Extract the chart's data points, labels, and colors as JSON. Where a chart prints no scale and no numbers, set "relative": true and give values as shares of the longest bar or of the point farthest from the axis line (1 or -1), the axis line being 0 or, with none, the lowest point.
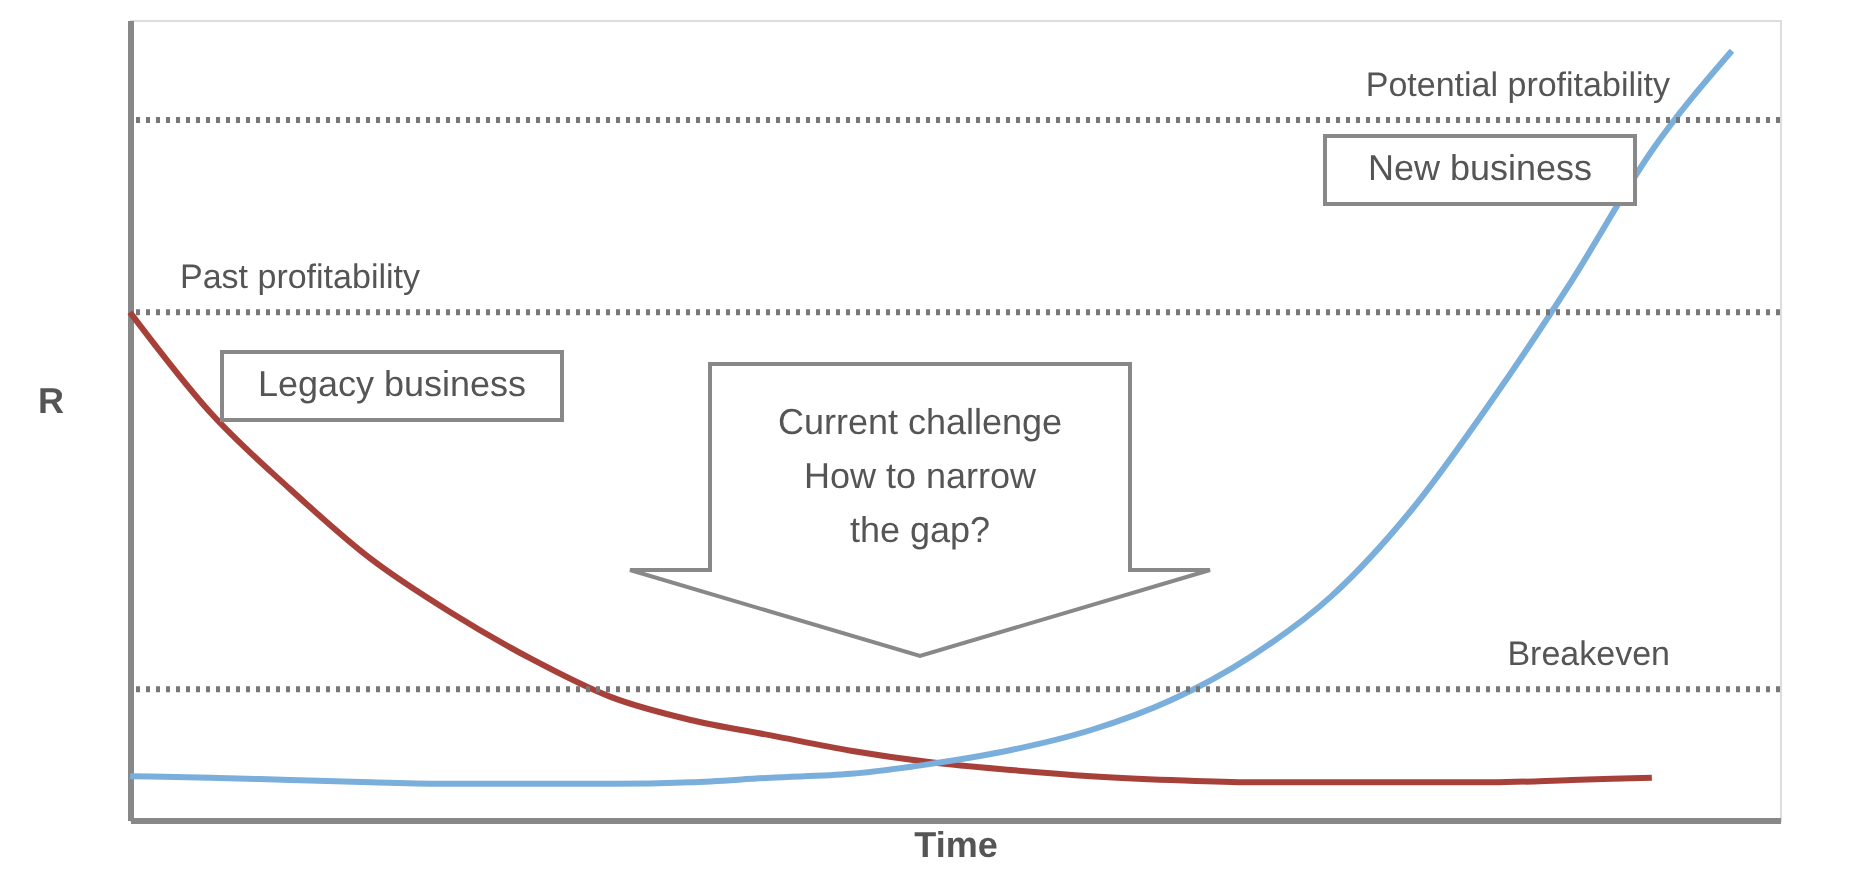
{
  "chart_data": {
    "type": "line",
    "relative": true,
    "xlabel": "Time",
    "ylabel": "R",
    "categories": [
      null,
      null,
      null,
      null,
      null,
      null,
      null,
      null,
      null,
      null,
      null,
      null,
      null,
      null,
      null,
      null,
      null,
      null,
      null,
      null,
      null
    ],
    "series": [
      {
        "name": "Legacy business",
        "color": "#a8403a",
        "values": [
          0.66,
          0.53,
          0.43,
          0.34,
          0.27,
          0.21,
          0.16,
          0.13,
          0.11,
          0.09,
          0.075,
          0.065,
          0.057,
          0.052,
          0.049,
          0.049,
          0.049,
          0.049,
          0.052,
          0.055,
          null
        ]
      },
      {
        "name": "New business",
        "color": "#7aaedb",
        "values": [
          0.057,
          0.055,
          0.052,
          0.049,
          0.047,
          0.047,
          0.047,
          0.049,
          0.055,
          0.06,
          0.073,
          0.091,
          0.117,
          0.156,
          0.213,
          0.291,
          0.403,
          0.545,
          0.701,
          0.87,
          1.0
        ]
      }
    ],
    "ref_lines": [
      {
        "axis": "y",
        "value": 0.91,
        "label": "Potential profitability",
        "color": "#777777",
        "line_style": "dotted"
      },
      {
        "axis": "y",
        "value": 0.66,
        "label": "Past profitability",
        "color": "#777777",
        "line_style": "dotted"
      },
      {
        "axis": "y",
        "value": 0.17,
        "label": "Breakeven",
        "color": "#777777",
        "line_style": "dotted"
      }
    ],
    "annotations": [
      "Current challenge\nHow to narrow\nthe gap?"
    ],
    "legend": false,
    "tick_labels": false,
    "grid": false
  }
}
